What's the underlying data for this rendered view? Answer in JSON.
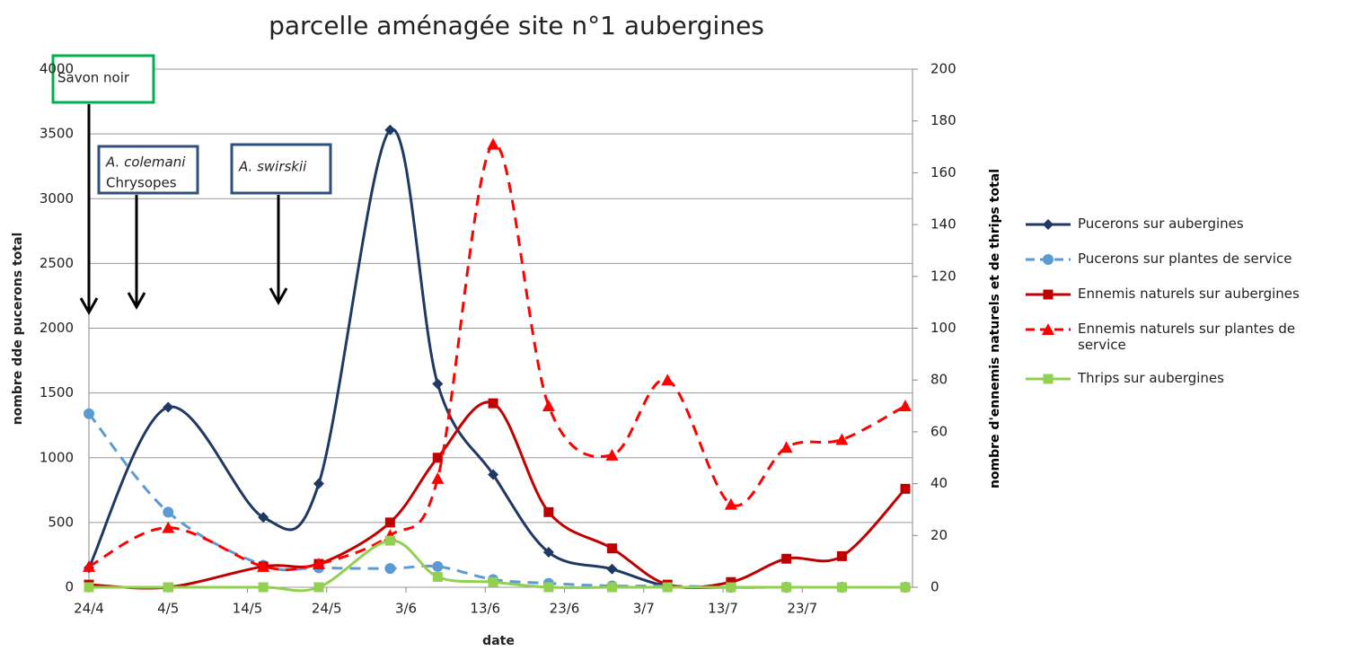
{
  "chart_data": {
    "type": "line",
    "title": "parcelle aménagée site n°1 aubergines",
    "x_label": "date",
    "y_label": "nombre dde pucerons total",
    "y2_label": "nombre d'ennemis naturels et de thrips total",
    "annotations": [
      "Savon noir",
      "A. colemani",
      "Chrysopes",
      "A. swirskii"
    ],
    "x": [
      "24/4",
      "4/5",
      "16/5",
      "23/5",
      "1/6",
      "7/6",
      "14/6",
      "21/6",
      "29/6",
      "6/7",
      "14/7",
      "21/7",
      "28/7",
      "5/8"
    ],
    "xlim": [
      "24/4",
      "5/8"
    ],
    "xticks": [
      "24/4",
      "4/5",
      "14/5",
      "24/5",
      "3/6",
      "13/6",
      "23/6",
      "3/7",
      "13/7",
      "23/7"
    ],
    "ylim": [
      0,
      4000
    ],
    "yticks": [
      0,
      500,
      1000,
      1500,
      2000,
      2500,
      3000,
      3500,
      4000
    ],
    "y2lim": [
      0,
      200
    ],
    "y2ticks": [
      0,
      20,
      40,
      60,
      80,
      100,
      120,
      140,
      160,
      180,
      200
    ],
    "grid": true,
    "legend": "right",
    "series": [
      {
        "name": "Pucerons sur aubergines",
        "color": "#1f3864",
        "marker": "diamond",
        "dashed": false,
        "values": [
          150,
          1390,
          540,
          800,
          3530,
          1570,
          870,
          270,
          140,
          10,
          0,
          0,
          0,
          0
        ]
      },
      {
        "name": "Pucerons sur plantes de service",
        "color": "#5b9bd5",
        "marker": "circle",
        "dashed": true,
        "values": [
          1340,
          580,
          170,
          150,
          145,
          160,
          60,
          30,
          10,
          10,
          0,
          0,
          0,
          0
        ]
      },
      {
        "name": "Ennemis naturels sur aubergines",
        "color": "#c00000",
        "marker": "square",
        "dashed": false,
        "axis": "y2",
        "values": [
          1,
          0,
          8,
          9,
          25,
          50,
          71,
          29,
          15,
          1,
          2,
          11,
          12,
          38
        ]
      },
      {
        "name": "Ennemis naturels sur plantes de service",
        "color": "#ff0000",
        "marker": "triangle",
        "dashed": true,
        "axis": "y2",
        "values": [
          8,
          23,
          8,
          9,
          20,
          42,
          171,
          70,
          51,
          80,
          32,
          54,
          57,
          70
        ]
      },
      {
        "name": "Thrips sur aubergines",
        "color": "#92d050",
        "marker": "square",
        "dashed": false,
        "axis": "y2",
        "values": [
          0,
          0,
          0,
          0,
          18,
          4,
          2,
          0,
          0,
          0,
          0,
          0,
          0,
          0
        ]
      }
    ]
  }
}
